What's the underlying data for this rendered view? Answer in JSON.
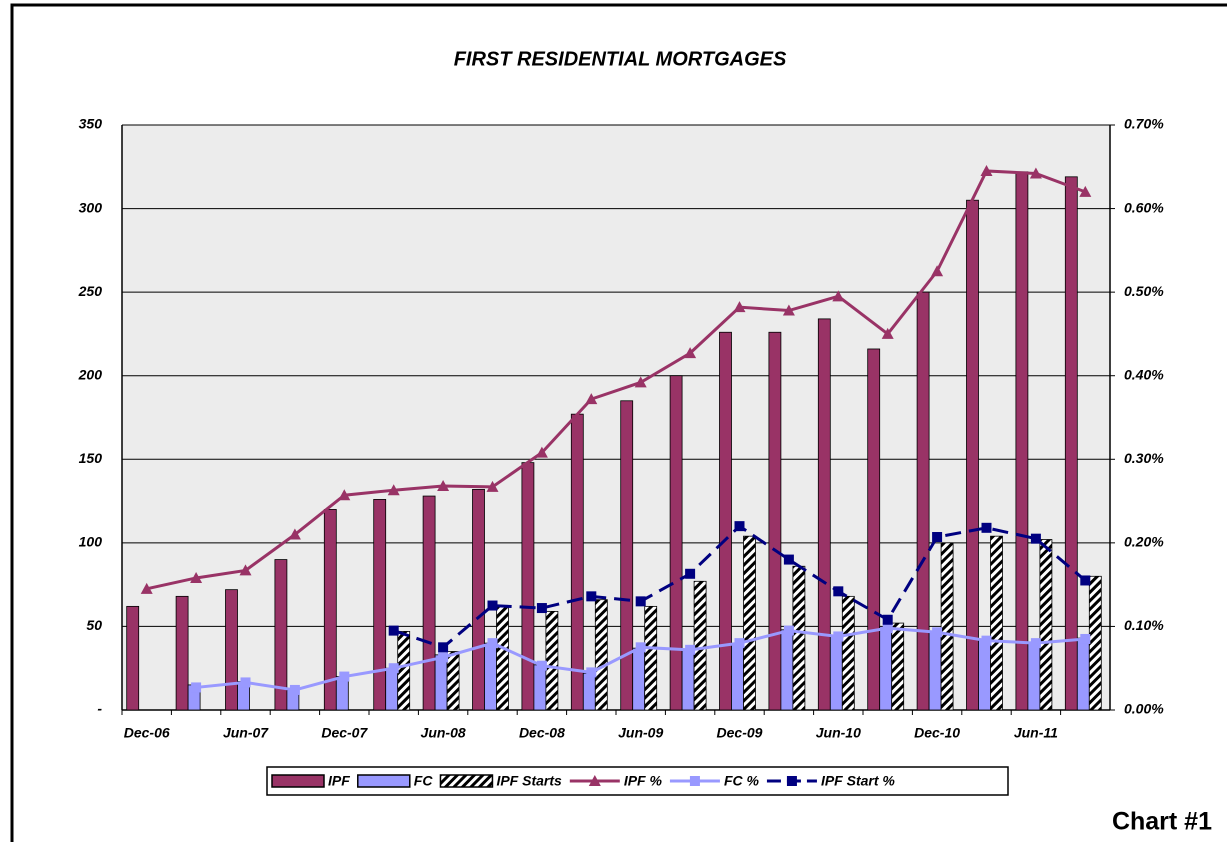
{
  "chart_data": {
    "type": "bar",
    "title": "FIRST RESIDENTIAL MORTGAGES",
    "annotation": "Chart #1",
    "categories": [
      "Dec-06",
      null,
      "Jun-07",
      null,
      "Dec-07",
      null,
      "Jun-08",
      null,
      "Dec-08",
      null,
      "Jun-09",
      null,
      "Dec-09",
      null,
      "Jun-10",
      null,
      "Dec-10",
      null,
      "Jun-11",
      null
    ],
    "ylim": [
      0,
      350
    ],
    "yticks": [
      {
        "value": 0,
        "label": "-"
      },
      50,
      100,
      150,
      200,
      250,
      300,
      350
    ],
    "y2lim": [
      0,
      0.7
    ],
    "y2ticks": [
      {
        "value": 0,
        "label": "0.00%"
      },
      {
        "value": 0.1,
        "label": "0.10%"
      },
      {
        "value": 0.2,
        "label": "0.20%"
      },
      {
        "value": 0.3,
        "label": "0.30%"
      },
      {
        "value": 0.4,
        "label": "0.40%"
      },
      {
        "value": 0.5,
        "label": "0.50%"
      },
      {
        "value": 0.6,
        "label": "0.60%"
      },
      {
        "value": 0.7,
        "label": "0.70%"
      }
    ],
    "grid": true,
    "legend": "bottom",
    "series": [
      {
        "name": "IPF",
        "type": "bar",
        "color": "#993366",
        "values": [
          62,
          68,
          72,
          90,
          120,
          126,
          128,
          132,
          148,
          177,
          185,
          200,
          226,
          226,
          234,
          216,
          250,
          305,
          322,
          319
        ]
      },
      {
        "name": "FC",
        "type": "bar",
        "color": "#9999ff",
        "values": [
          null,
          15,
          17,
          12,
          20,
          25,
          33,
          40,
          27,
          22,
          37,
          36,
          40,
          48,
          44,
          50,
          47,
          42,
          40,
          43
        ]
      },
      {
        "name": "IPF Starts",
        "type": "bar",
        "color": "#000000",
        "hatch": true,
        "values": [
          null,
          null,
          null,
          null,
          null,
          47,
          35,
          62,
          59,
          66,
          62,
          77,
          104,
          86,
          68,
          52,
          100,
          104,
          102,
          80
        ]
      },
      {
        "name": "IPF %",
        "type": "line",
        "axis": "y2",
        "color": "#993366",
        "marker": "triangle",
        "values": [
          0.145,
          0.158,
          0.167,
          0.21,
          0.257,
          0.263,
          0.268,
          0.267,
          0.308,
          0.372,
          0.392,
          0.427,
          0.482,
          0.478,
          0.495,
          0.45,
          0.525,
          0.645,
          0.642,
          0.62
        ]
      },
      {
        "name": "FC %",
        "type": "line",
        "axis": "y2",
        "color": "#9999ff",
        "marker": "square",
        "values": [
          null,
          0.027,
          0.033,
          0.024,
          0.04,
          0.05,
          0.063,
          0.08,
          0.053,
          0.045,
          0.075,
          0.072,
          0.08,
          0.095,
          0.088,
          0.098,
          0.093,
          0.083,
          0.08,
          0.085
        ]
      },
      {
        "name": "IPF Start %",
        "type": "line",
        "axis": "y2",
        "color": "#000080",
        "marker": "square",
        "dash": true,
        "values": [
          null,
          null,
          null,
          null,
          null,
          0.095,
          0.075,
          0.125,
          0.122,
          0.136,
          0.13,
          0.163,
          0.22,
          0.18,
          0.142,
          0.108,
          0.207,
          0.218,
          0.205,
          0.155
        ]
      }
    ]
  }
}
